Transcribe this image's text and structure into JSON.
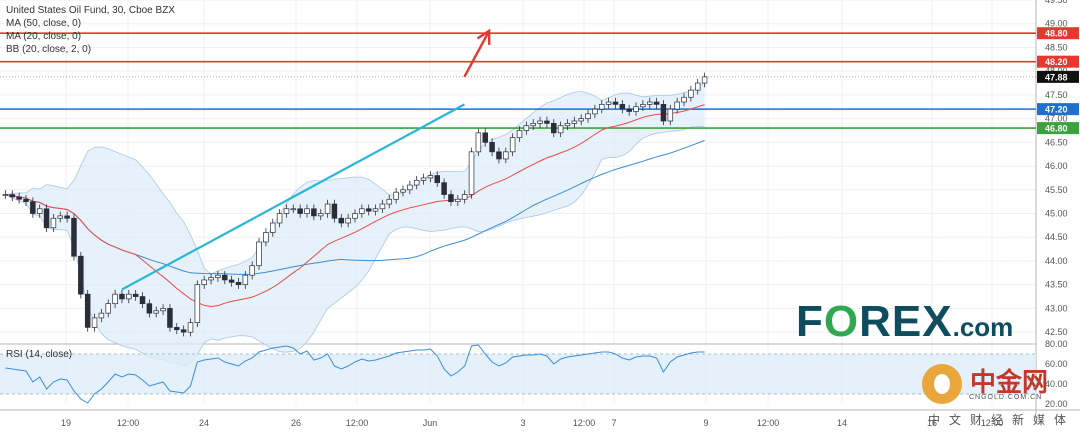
{
  "legend": {
    "title": "United States Oil Fund, 30, Cboe BZX",
    "ma50": "MA (50, close, 0)",
    "ma20": "MA (20, close, 0)",
    "bb": "BB (20, close, 2, 0)"
  },
  "rsi_legend": "RSI (14, close)",
  "watermarks": {
    "forex_pre": "F",
    "forex_o": "O",
    "forex_post": "REX",
    "forex_dot": ".com",
    "cn_name": "中金网",
    "cn_site": "CNGOLD.COM.CN",
    "cn_tag": "中文财经新媒体"
  },
  "colors": {
    "bg": "#ffffff",
    "grid": "#eef0f3",
    "candle": "#2a2e39",
    "ma20": "#e84b4b",
    "ma50": "#3b8fd6",
    "bb_fill": "#dcebf8",
    "bb_line": "#a9c9e6",
    "trendline": "#2ab6d6",
    "res_line": "#e8372f",
    "blue_line": "#1f6fd1",
    "green_line": "#3ca33c",
    "arrow": "#e8372f",
    "rsi_line": "#3b8fd6",
    "rsi_fill": "#ddecf9",
    "current": "#111111"
  },
  "chart_data": {
    "type": "candlestick",
    "title": "United States Oil Fund, 30, Cboe BZX",
    "ylim": [
      42.25,
      49.5
    ],
    "y_ticks": [
      "49.50",
      "49.00",
      "48.50",
      "48.00",
      "47.50",
      "47.00",
      "46.50",
      "46.00",
      "45.50",
      "45.00",
      "44.50",
      "44.00",
      "43.50",
      "43.00",
      "42.50"
    ],
    "x_ticks": [
      "19",
      "12:00",
      "24",
      "26",
      "12:00",
      "Jun",
      "3",
      "12:00",
      "7",
      "9",
      "12:00",
      "14",
      "16",
      "12:00"
    ],
    "last_price": 47.88,
    "price_labels": [
      {
        "value": 48.8,
        "label": "48.80",
        "color": "#e8372f"
      },
      {
        "value": 48.2,
        "label": "48.20",
        "color": "#e8372f"
      },
      {
        "value": 47.88,
        "label": "47.88",
        "color": "#111111"
      },
      {
        "value": 47.2,
        "label": "47.20",
        "color": "#1f6fd1"
      },
      {
        "value": 46.8,
        "label": "46.80",
        "color": "#3ca33c"
      }
    ],
    "horizontal_levels": [
      {
        "value": 48.8,
        "color": "#e8372f"
      },
      {
        "value": 48.2,
        "color": "#e8372f"
      },
      {
        "value": 47.2,
        "color": "#1f6fd1"
      },
      {
        "value": 46.8,
        "color": "#3ca33c"
      }
    ],
    "trendline": {
      "from": [
        0.17,
        43.4
      ],
      "to": [
        0.655,
        47.3
      ]
    },
    "arrow": {
      "from": [
        0.655,
        47.88
      ],
      "to": [
        0.69,
        48.85
      ]
    },
    "closes": [
      45.4,
      45.35,
      45.3,
      45.25,
      45.0,
      45.1,
      44.7,
      44.9,
      44.95,
      44.9,
      44.1,
      43.3,
      42.6,
      42.8,
      42.9,
      43.1,
      43.3,
      43.2,
      43.3,
      43.25,
      43.1,
      42.9,
      42.95,
      43.0,
      42.6,
      42.55,
      42.5,
      42.7,
      43.5,
      43.6,
      43.65,
      43.7,
      43.6,
      43.55,
      43.5,
      43.7,
      43.9,
      44.4,
      44.6,
      44.8,
      45.0,
      45.1,
      45.1,
      45.0,
      45.1,
      44.95,
      45.0,
      45.2,
      44.9,
      44.8,
      44.9,
      45.0,
      45.1,
      45.05,
      45.1,
      45.2,
      45.3,
      45.45,
      45.5,
      45.6,
      45.7,
      45.75,
      45.8,
      45.65,
      45.4,
      45.25,
      45.3,
      45.4,
      46.3,
      46.7,
      46.5,
      46.3,
      46.15,
      46.3,
      46.6,
      46.75,
      46.85,
      46.9,
      46.95,
      46.9,
      46.7,
      46.85,
      46.9,
      46.95,
      47.0,
      47.1,
      47.2,
      47.3,
      47.35,
      47.3,
      47.2,
      47.15,
      47.25,
      47.3,
      47.35,
      47.3,
      46.95,
      47.2,
      47.35,
      47.45,
      47.6,
      47.75,
      47.88
    ],
    "rsi": {
      "title": "RSI (14, close)",
      "ylim": [
        20,
        80
      ],
      "y_ticks": [
        "80.00",
        "60.00",
        "40.00",
        "20.00"
      ],
      "overbought": 70,
      "oversold": 30,
      "values": [
        56,
        55,
        54,
        53,
        42,
        47,
        35,
        42,
        45,
        44,
        33,
        25,
        21,
        30,
        35,
        42,
        50,
        47,
        50,
        49,
        44,
        38,
        40,
        42,
        33,
        32,
        31,
        38,
        62,
        64,
        65,
        66,
        62,
        60,
        58,
        63,
        66,
        72,
        74,
        76,
        77,
        78,
        76,
        70,
        73,
        64,
        66,
        70,
        58,
        55,
        58,
        62,
        65,
        63,
        64,
        66,
        68,
        71,
        72,
        73,
        74,
        74,
        75,
        68,
        55,
        48,
        52,
        58,
        78,
        79,
        70,
        62,
        58,
        61,
        67,
        68,
        69,
        69,
        70,
        68,
        60,
        65,
        67,
        68,
        69,
        70,
        71,
        72,
        72,
        70,
        66,
        64,
        67,
        68,
        68,
        66,
        52,
        62,
        67,
        69,
        71,
        72,
        72
      ]
    }
  }
}
